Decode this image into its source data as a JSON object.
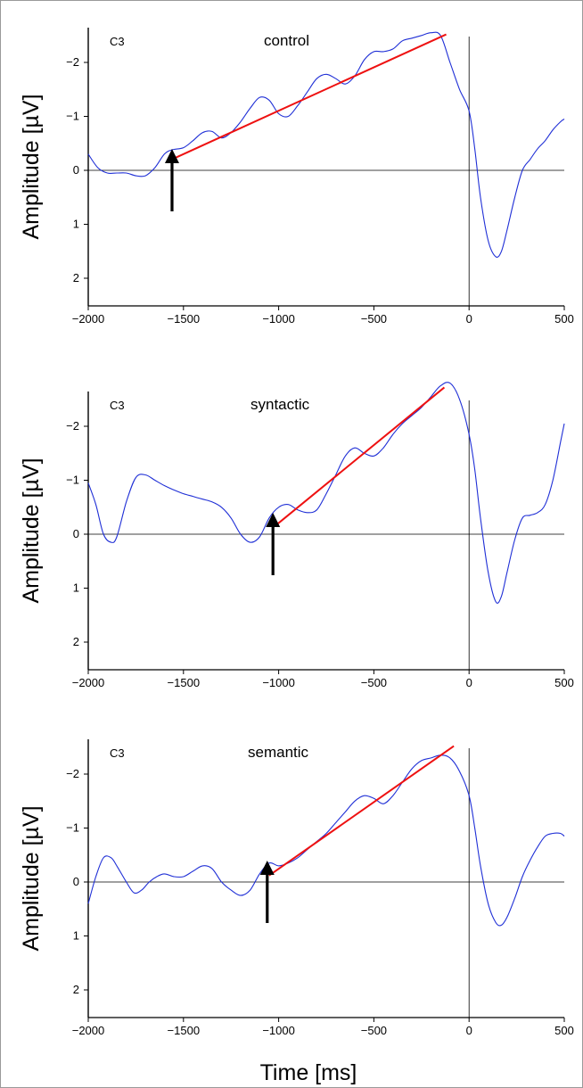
{
  "chart_data": [
    {
      "type": "line",
      "title": "control",
      "channel": "C3",
      "ylabel": "Amplitude [µV]",
      "xlabel": "",
      "xlim": [
        -2000,
        500
      ],
      "ylim": [
        2.55,
        -2.6
      ],
      "y_inverted": true,
      "x_ticks": [
        "-2000",
        "-1500",
        "-1000",
        "-500",
        "0",
        "500"
      ],
      "y_ticks": [
        "-2",
        "-1",
        "0",
        "1",
        "2"
      ],
      "colors": {
        "erp": "#1f2fd6",
        "fit": "#ee1111",
        "axis": "#000000"
      },
      "series": [
        {
          "kind": "erp",
          "x": [
            -2000,
            -1950,
            -1900,
            -1850,
            -1800,
            -1750,
            -1700,
            -1650,
            -1600,
            -1560,
            -1500,
            -1450,
            -1400,
            -1350,
            -1300,
            -1250,
            -1200,
            -1150,
            -1100,
            -1050,
            -1000,
            -950,
            -900,
            -850,
            -800,
            -750,
            -700,
            -650,
            -600,
            -550,
            -500,
            -450,
            -400,
            -350,
            -300,
            -250,
            -200,
            -150,
            -100,
            -50,
            0,
            30,
            60,
            100,
            140,
            170,
            200,
            240,
            280,
            320,
            360,
            400,
            440,
            480,
            500
          ],
          "y": [
            -0.3,
            -0.05,
            0.05,
            0.05,
            0.05,
            0.1,
            0.1,
            -0.05,
            -0.3,
            -0.38,
            -0.42,
            -0.55,
            -0.7,
            -0.72,
            -0.6,
            -0.7,
            -0.9,
            -1.15,
            -1.35,
            -1.3,
            -1.05,
            -1.0,
            -1.2,
            -1.45,
            -1.7,
            -1.78,
            -1.7,
            -1.6,
            -1.75,
            -2.05,
            -2.2,
            -2.2,
            -2.25,
            -2.4,
            -2.45,
            -2.5,
            -2.55,
            -2.5,
            -2.0,
            -1.5,
            -1.1,
            -0.4,
            0.5,
            1.3,
            1.6,
            1.5,
            1.1,
            0.5,
            0.0,
            -0.2,
            -0.4,
            -0.55,
            -0.75,
            -0.9,
            -0.95
          ]
        },
        {
          "kind": "fit",
          "x": [
            -1550,
            -120
          ],
          "y": [
            -0.22,
            -2.52
          ]
        }
      ],
      "annotations": [
        {
          "type": "arrow",
          "x": -1560
        }
      ]
    },
    {
      "type": "line",
      "title": "syntactic",
      "channel": "C3",
      "ylabel": "Amplitude [µV]",
      "xlabel": "",
      "xlim": [
        -2000,
        500
      ],
      "ylim": [
        2.55,
        -2.6
      ],
      "y_inverted": true,
      "x_ticks": [
        "-2000",
        "-1500",
        "-1000",
        "-500",
        "0",
        "500"
      ],
      "y_ticks": [
        "-2",
        "-1",
        "0",
        "1",
        "2"
      ],
      "colors": {
        "erp": "#1f2fd6",
        "fit": "#ee1111",
        "axis": "#000000"
      },
      "series": [
        {
          "kind": "erp",
          "x": [
            -2000,
            -1960,
            -1920,
            -1880,
            -1850,
            -1800,
            -1750,
            -1700,
            -1650,
            -1600,
            -1550,
            -1500,
            -1450,
            -1400,
            -1350,
            -1300,
            -1250,
            -1200,
            -1150,
            -1100,
            -1050,
            -1000,
            -950,
            -900,
            -850,
            -800,
            -750,
            -700,
            -650,
            -600,
            -550,
            -500,
            -450,
            -400,
            -350,
            -300,
            -250,
            -200,
            -150,
            -100,
            -50,
            0,
            30,
            60,
            100,
            140,
            170,
            200,
            240,
            280,
            320,
            360,
            400,
            440,
            480,
            500
          ],
          "y": [
            -0.95,
            -0.55,
            0.0,
            0.15,
            0.05,
            -0.6,
            -1.05,
            -1.1,
            -1.0,
            -0.9,
            -0.82,
            -0.75,
            -0.7,
            -0.65,
            -0.6,
            -0.5,
            -0.3,
            0.0,
            0.15,
            0.05,
            -0.3,
            -0.5,
            -0.55,
            -0.45,
            -0.4,
            -0.45,
            -0.75,
            -1.1,
            -1.45,
            -1.6,
            -1.5,
            -1.45,
            -1.6,
            -1.85,
            -2.05,
            -2.2,
            -2.35,
            -2.55,
            -2.75,
            -2.8,
            -2.5,
            -1.85,
            -1.2,
            -0.3,
            0.7,
            1.25,
            1.15,
            0.7,
            0.1,
            -0.3,
            -0.35,
            -0.4,
            -0.55,
            -1.0,
            -1.7,
            -2.05
          ]
        },
        {
          "kind": "fit",
          "x": [
            -1020,
            -130
          ],
          "y": [
            -0.15,
            -2.72
          ]
        }
      ],
      "annotations": [
        {
          "type": "arrow",
          "x": -1030
        }
      ]
    },
    {
      "type": "line",
      "title": "semantic",
      "channel": "C3",
      "ylabel": "Amplitude [µV]",
      "xlabel": "Time [ms]",
      "xlim": [
        -2000,
        500
      ],
      "ylim": [
        2.55,
        -2.6
      ],
      "y_inverted": true,
      "x_ticks": [
        "-2000",
        "-1500",
        "-1000",
        "-500",
        "0",
        "500"
      ],
      "y_ticks": [
        "-2",
        "-1",
        "0",
        "1",
        "2"
      ],
      "colors": {
        "erp": "#1f2fd6",
        "fit": "#ee1111",
        "axis": "#000000"
      },
      "series": [
        {
          "kind": "erp",
          "x": [
            -2000,
            -1960,
            -1920,
            -1880,
            -1850,
            -1800,
            -1760,
            -1720,
            -1680,
            -1640,
            -1600,
            -1550,
            -1500,
            -1450,
            -1400,
            -1350,
            -1300,
            -1250,
            -1200,
            -1150,
            -1100,
            -1050,
            -1000,
            -950,
            -900,
            -850,
            -800,
            -750,
            -700,
            -650,
            -600,
            -550,
            -500,
            -450,
            -400,
            -350,
            -300,
            -250,
            -200,
            -150,
            -100,
            -50,
            0,
            30,
            60,
            100,
            140,
            170,
            200,
            240,
            280,
            320,
            360,
            400,
            440,
            480,
            500
          ],
          "y": [
            0.4,
            -0.1,
            -0.45,
            -0.45,
            -0.3,
            0.0,
            0.2,
            0.15,
            0.0,
            -0.1,
            -0.15,
            -0.1,
            -0.1,
            -0.2,
            -0.3,
            -0.25,
            0.0,
            0.15,
            0.25,
            0.15,
            -0.15,
            -0.35,
            -0.3,
            -0.35,
            -0.45,
            -0.6,
            -0.75,
            -0.9,
            -1.1,
            -1.3,
            -1.5,
            -1.6,
            -1.55,
            -1.45,
            -1.6,
            -1.85,
            -2.1,
            -2.25,
            -2.3,
            -2.35,
            -2.3,
            -2.05,
            -1.6,
            -1.0,
            -0.3,
            0.4,
            0.75,
            0.8,
            0.65,
            0.3,
            -0.1,
            -0.4,
            -0.65,
            -0.85,
            -0.9,
            -0.9,
            -0.85
          ]
        },
        {
          "kind": "fit",
          "x": [
            -1050,
            -80
          ],
          "y": [
            -0.12,
            -2.52
          ]
        }
      ],
      "annotations": [
        {
          "type": "arrow",
          "x": -1060
        }
      ]
    }
  ]
}
